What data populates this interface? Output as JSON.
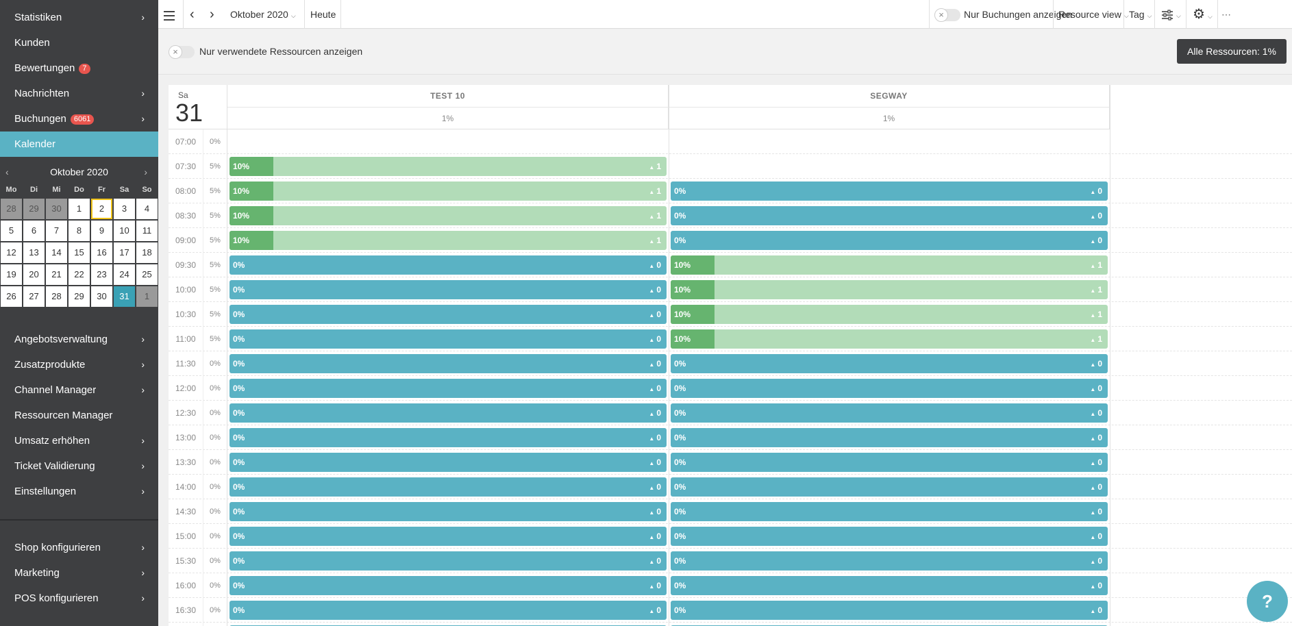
{
  "sidebar": {
    "top_items": [
      {
        "label": "Statistiken",
        "chevron": true
      },
      {
        "label": "Kunden",
        "chevron": false
      },
      {
        "label": "Bewertungen",
        "badge": "7",
        "chevron": false
      },
      {
        "label": "Nachrichten",
        "chevron": true
      },
      {
        "label": "Buchungen",
        "badge": "6061",
        "chevron": true
      },
      {
        "label": "Kalender",
        "chevron": false,
        "active": true
      }
    ],
    "mini_calendar": {
      "month_label": "Oktober 2020",
      "weekdays": [
        "Mo",
        "Di",
        "Mi",
        "Do",
        "Fr",
        "Sa",
        "So"
      ],
      "days": [
        {
          "d": "28",
          "other": true
        },
        {
          "d": "29",
          "other": true
        },
        {
          "d": "30",
          "other": true
        },
        {
          "d": "1"
        },
        {
          "d": "2",
          "today": true
        },
        {
          "d": "3"
        },
        {
          "d": "4"
        },
        {
          "d": "5"
        },
        {
          "d": "6"
        },
        {
          "d": "7"
        },
        {
          "d": "8"
        },
        {
          "d": "9"
        },
        {
          "d": "10"
        },
        {
          "d": "11"
        },
        {
          "d": "12"
        },
        {
          "d": "13"
        },
        {
          "d": "14"
        },
        {
          "d": "15"
        },
        {
          "d": "16"
        },
        {
          "d": "17"
        },
        {
          "d": "18"
        },
        {
          "d": "19"
        },
        {
          "d": "20"
        },
        {
          "d": "21"
        },
        {
          "d": "22"
        },
        {
          "d": "23"
        },
        {
          "d": "24"
        },
        {
          "d": "25"
        },
        {
          "d": "26"
        },
        {
          "d": "27"
        },
        {
          "d": "28"
        },
        {
          "d": "29"
        },
        {
          "d": "30"
        },
        {
          "d": "31",
          "selected": true
        },
        {
          "d": "1",
          "other": true
        }
      ]
    },
    "mid_items": [
      {
        "label": "Angebotsverwaltung",
        "chevron": true
      },
      {
        "label": "Zusatzprodukte",
        "chevron": true
      },
      {
        "label": "Channel Manager",
        "chevron": true
      },
      {
        "label": "Ressourcen Manager",
        "chevron": false
      },
      {
        "label": "Umsatz erhöhen",
        "chevron": true
      },
      {
        "label": "Ticket Validierung",
        "chevron": true
      },
      {
        "label": "Einstellungen",
        "chevron": true
      }
    ],
    "bottom_items": [
      {
        "label": "Shop konfigurieren",
        "chevron": true
      },
      {
        "label": "Marketing",
        "chevron": true
      },
      {
        "label": "POS konfigurieren",
        "chevron": true
      }
    ]
  },
  "topbar": {
    "month_label": "Oktober 2020",
    "today_label": "Heute",
    "only_bookings_label": "Nur Buchungen anzeigen",
    "view_label": "Resource view",
    "range_label": "Tag"
  },
  "filterbar": {
    "only_used_label": "Nur verwendete Ressourcen anzeigen",
    "all_resources_label": "Alle Ressourcen: 1%"
  },
  "schedule": {
    "day_of_week": "Sa",
    "day_number": "31",
    "resources": [
      {
        "name": "TEST 10",
        "utilization": "1%"
      },
      {
        "name": "SEGWAY",
        "utilization": "1%"
      }
    ],
    "rows": [
      {
        "time": "07:00",
        "util": "0%",
        "slots": [
          null,
          null
        ]
      },
      {
        "time": "07:30",
        "util": "5%",
        "slots": [
          {
            "pct": "10%",
            "count": "1",
            "fill": 0.1
          },
          null
        ]
      },
      {
        "time": "08:00",
        "util": "5%",
        "slots": [
          {
            "pct": "10%",
            "count": "1",
            "fill": 0.1
          },
          {
            "pct": "0%",
            "count": "0",
            "fill": 0
          }
        ]
      },
      {
        "time": "08:30",
        "util": "5%",
        "slots": [
          {
            "pct": "10%",
            "count": "1",
            "fill": 0.1
          },
          {
            "pct": "0%",
            "count": "0",
            "fill": 0
          }
        ]
      },
      {
        "time": "09:00",
        "util": "5%",
        "slots": [
          {
            "pct": "10%",
            "count": "1",
            "fill": 0.1
          },
          {
            "pct": "0%",
            "count": "0",
            "fill": 0
          }
        ]
      },
      {
        "time": "09:30",
        "util": "5%",
        "slots": [
          {
            "pct": "0%",
            "count": "0",
            "fill": 0
          },
          {
            "pct": "10%",
            "count": "1",
            "fill": 0.1
          }
        ]
      },
      {
        "time": "10:00",
        "util": "5%",
        "slots": [
          {
            "pct": "0%",
            "count": "0",
            "fill": 0
          },
          {
            "pct": "10%",
            "count": "1",
            "fill": 0.1
          }
        ]
      },
      {
        "time": "10:30",
        "util": "5%",
        "slots": [
          {
            "pct": "0%",
            "count": "0",
            "fill": 0
          },
          {
            "pct": "10%",
            "count": "1",
            "fill": 0.1
          }
        ]
      },
      {
        "time": "11:00",
        "util": "5%",
        "slots": [
          {
            "pct": "0%",
            "count": "0",
            "fill": 0
          },
          {
            "pct": "10%",
            "count": "1",
            "fill": 0.1
          }
        ]
      },
      {
        "time": "11:30",
        "util": "0%",
        "slots": [
          {
            "pct": "0%",
            "count": "0",
            "fill": 0
          },
          {
            "pct": "0%",
            "count": "0",
            "fill": 0
          }
        ]
      },
      {
        "time": "12:00",
        "util": "0%",
        "slots": [
          {
            "pct": "0%",
            "count": "0",
            "fill": 0
          },
          {
            "pct": "0%",
            "count": "0",
            "fill": 0
          }
        ]
      },
      {
        "time": "12:30",
        "util": "0%",
        "slots": [
          {
            "pct": "0%",
            "count": "0",
            "fill": 0
          },
          {
            "pct": "0%",
            "count": "0",
            "fill": 0
          }
        ]
      },
      {
        "time": "13:00",
        "util": "0%",
        "slots": [
          {
            "pct": "0%",
            "count": "0",
            "fill": 0
          },
          {
            "pct": "0%",
            "count": "0",
            "fill": 0
          }
        ]
      },
      {
        "time": "13:30",
        "util": "0%",
        "slots": [
          {
            "pct": "0%",
            "count": "0",
            "fill": 0
          },
          {
            "pct": "0%",
            "count": "0",
            "fill": 0
          }
        ]
      },
      {
        "time": "14:00",
        "util": "0%",
        "slots": [
          {
            "pct": "0%",
            "count": "0",
            "fill": 0
          },
          {
            "pct": "0%",
            "count": "0",
            "fill": 0
          }
        ]
      },
      {
        "time": "14:30",
        "util": "0%",
        "slots": [
          {
            "pct": "0%",
            "count": "0",
            "fill": 0
          },
          {
            "pct": "0%",
            "count": "0",
            "fill": 0
          }
        ]
      },
      {
        "time": "15:00",
        "util": "0%",
        "slots": [
          {
            "pct": "0%",
            "count": "0",
            "fill": 0
          },
          {
            "pct": "0%",
            "count": "0",
            "fill": 0
          }
        ]
      },
      {
        "time": "15:30",
        "util": "0%",
        "slots": [
          {
            "pct": "0%",
            "count": "0",
            "fill": 0
          },
          {
            "pct": "0%",
            "count": "0",
            "fill": 0
          }
        ]
      },
      {
        "time": "16:00",
        "util": "0%",
        "slots": [
          {
            "pct": "0%",
            "count": "0",
            "fill": 0
          },
          {
            "pct": "0%",
            "count": "0",
            "fill": 0
          }
        ]
      },
      {
        "time": "16:30",
        "util": "0%",
        "slots": [
          {
            "pct": "0%",
            "count": "0",
            "fill": 0
          },
          {
            "pct": "0%",
            "count": "0",
            "fill": 0
          }
        ]
      },
      {
        "time": "",
        "util": "",
        "slots": [
          {
            "pct": "",
            "count": "",
            "fill": 0
          },
          {
            "pct": "",
            "count": "",
            "fill": 0
          }
        ]
      }
    ]
  },
  "help_label": "?",
  "colors": {
    "sidebar_bg": "#3e3f41",
    "accent": "#5ab2c4",
    "booked_fill": "#66b46f",
    "booked_bg": "#b2dcb8",
    "badge": "#e8554e"
  }
}
